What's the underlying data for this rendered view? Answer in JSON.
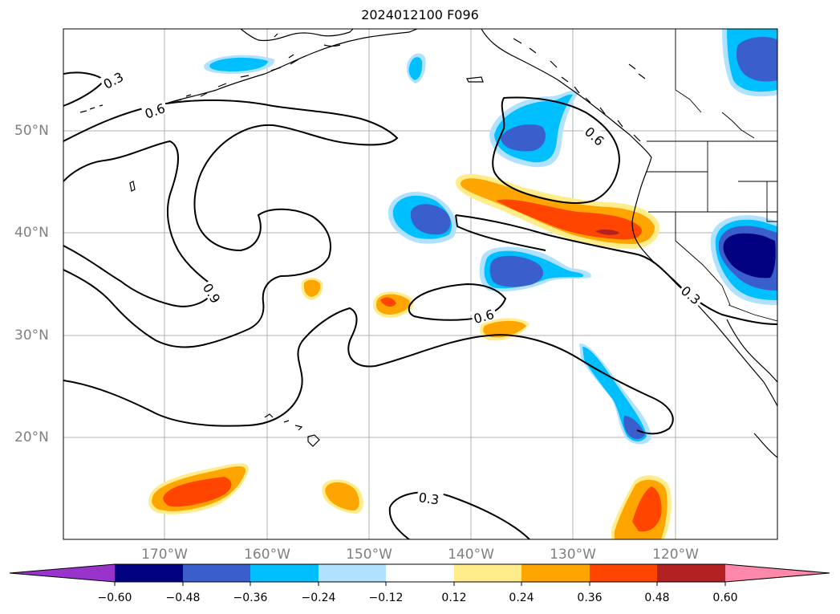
{
  "title": "2024012100 F096",
  "lon_labels": [
    "170°W",
    "160°W",
    "150°W",
    "140°W",
    "130°W",
    "120°W"
  ],
  "lat_labels": [
    "50°N",
    "40°N",
    "30°N",
    "20°N"
  ],
  "contour_labels": [
    "0.3",
    "0.6",
    "0.9",
    "0.6",
    "0.6",
    "0.3",
    "0.3"
  ],
  "colorbar": {
    "ticks": [
      "−0.60",
      "−0.48",
      "−0.36",
      "−0.24",
      "−0.12",
      "0.12",
      "0.24",
      "0.36",
      "0.48",
      "0.60"
    ],
    "colors": [
      "#9933cc",
      "#000080",
      "#3a5fcd",
      "#00bfff",
      "#b0e2ff",
      "#ffffff",
      "#ffec8b",
      "#ffa500",
      "#ff4500",
      "#b22222",
      "#ff88aa"
    ]
  },
  "colors": {
    "grid": "#b0b0b0",
    "tick_label": "#7f7f7f",
    "contour": "#000000"
  }
}
